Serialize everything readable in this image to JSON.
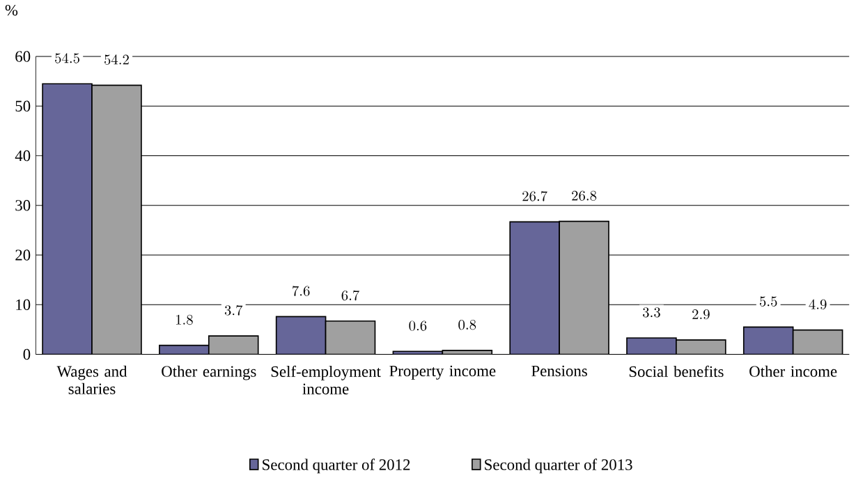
{
  "chart_data": {
    "type": "bar",
    "ylabel": "%",
    "categories": [
      "Wages and salaries",
      "Other earnings",
      "Self-employment income",
      "Property income",
      "Pensions",
      "Social benefits",
      "Other income"
    ],
    "series": [
      {
        "name": "Second  quarter of 2012",
        "color": "#666699",
        "values": [
          54.5,
          1.8,
          7.6,
          0.6,
          26.7,
          3.3,
          5.5
        ]
      },
      {
        "name": "Second quarter of 2013",
        "color": "#a0a0a0",
        "values": [
          54.2,
          3.7,
          6.7,
          0.8,
          26.8,
          2.9,
          4.9
        ]
      }
    ],
    "ylim": [
      0,
      60
    ],
    "yticks": [
      0,
      10,
      20,
      30,
      40,
      50,
      60
    ],
    "grid": "y",
    "legend": "bottom",
    "data_labels": true
  }
}
